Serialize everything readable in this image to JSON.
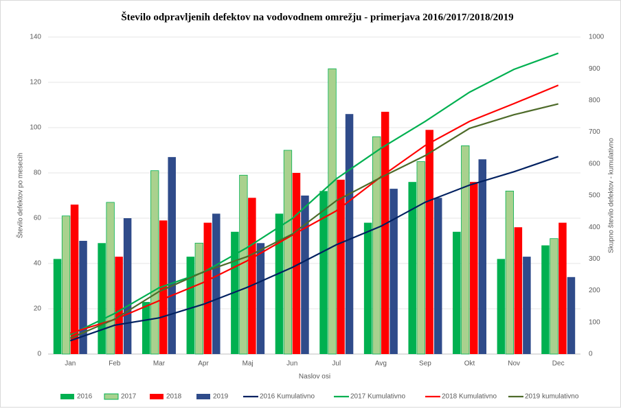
{
  "chart_data": {
    "type": "bar",
    "title": "Število odpravljenih defektov na vodovodnem omrežju - primerjava 2016/2017/2018/2019",
    "xlabel": "Naslov osi",
    "ylabel": "Število defektov po mesecih",
    "y2label": "Skupno število defektov - kumulativno",
    "categories": [
      "Jan",
      "Feb",
      "Mar",
      "Apr",
      "Maj",
      "Jun",
      "Jul",
      "Avg",
      "Sep",
      "Okt",
      "Nov",
      "Dec"
    ],
    "ylim": [
      0,
      140
    ],
    "yticks": [
      0,
      20,
      40,
      60,
      80,
      100,
      120,
      140
    ],
    "y2lim": [
      0,
      1000
    ],
    "y2ticks": [
      0,
      100,
      200,
      300,
      400,
      500,
      600,
      700,
      800,
      900,
      1000
    ],
    "series": [
      {
        "name": "2016",
        "type": "bar",
        "color": "#00b050",
        "values": [
          42,
          49,
          23,
          43,
          54,
          62,
          72,
          58,
          76,
          54,
          42,
          48
        ]
      },
      {
        "name": "2017",
        "type": "bar",
        "color": "#a9d18e",
        "values": [
          61,
          67,
          81,
          49,
          79,
          90,
          126,
          96,
          85,
          92,
          72,
          51
        ]
      },
      {
        "name": "2018",
        "type": "bar",
        "color": "#ff0000",
        "values": [
          66,
          43,
          59,
          58,
          69,
          80,
          77,
          107,
          99,
          76,
          56,
          58
        ]
      },
      {
        "name": "2019",
        "type": "bar",
        "color": "#2f4b8a",
        "values": [
          50,
          60,
          87,
          62,
          49,
          70,
          106,
          73,
          69,
          86,
          43,
          34
        ]
      },
      {
        "name": "2016 Kumulativno",
        "type": "line",
        "axis": "y2",
        "color": "#002060",
        "values": [
          42,
          91,
          114,
          157,
          211,
          273,
          345,
          403,
          479,
          533,
          575,
          623
        ]
      },
      {
        "name": "2017 Kumulativno",
        "type": "line",
        "axis": "y2",
        "color": "#00b050",
        "values": [
          61,
          128,
          209,
          258,
          337,
          427,
          553,
          649,
          734,
          826,
          898,
          949
        ]
      },
      {
        "name": "2018 Kumulativno",
        "type": "line",
        "axis": "y2",
        "color": "#ff0000",
        "values": [
          66,
          109,
          168,
          226,
          295,
          375,
          452,
          559,
          658,
          734,
          790,
          848
        ]
      },
      {
        "name": "2019 kumulativno",
        "type": "line",
        "axis": "y2",
        "color": "#4e6b2a",
        "values": [
          50,
          110,
          197,
          259,
          308,
          378,
          484,
          557,
          626,
          712,
          755,
          789
        ]
      }
    ]
  }
}
